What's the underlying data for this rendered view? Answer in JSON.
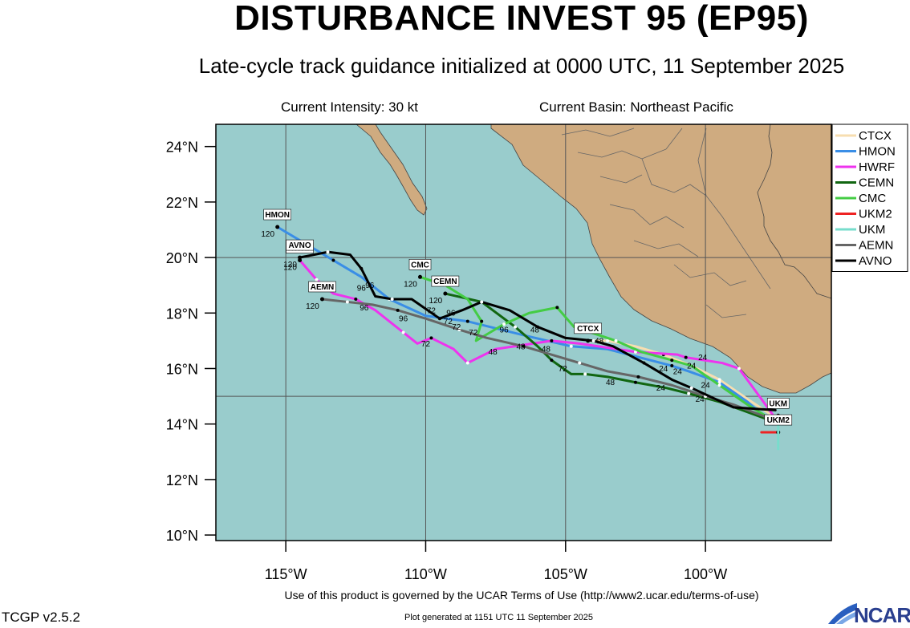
{
  "header": {
    "title": "DISTURBANCE INVEST 95 (EP95)",
    "subtitle": "Late-cycle track guidance initialized at 0000 UTC, 11 September 2025",
    "intensity": "Current Intensity: 30 kt",
    "basin": "Current Basin: Northeast Pacific"
  },
  "footer": {
    "terms": "Use of this product is governed by the UCAR Terms of Use (http://www2.ucar.edu/terms-of-use)",
    "version": "TCGP v2.5.2",
    "generated": "Plot generated at 1151 UTC   11 September 2025",
    "logo": "NCAR"
  },
  "colors": {
    "ocean": "#99cccc",
    "land": "#cfab80",
    "grid": "#555555"
  },
  "map": {
    "lon_range": [
      -117.5,
      -95.5
    ],
    "lat_range": [
      9.8,
      24.8
    ],
    "lon_ticks": [
      -115,
      -110,
      -105,
      -100
    ],
    "lon_tick_labels": [
      "115°W",
      "110°W",
      "105°W",
      "100°W"
    ],
    "lat_ticks": [
      10,
      12,
      14,
      16,
      18,
      20,
      22,
      24
    ],
    "lat_tick_labels": [
      "10°N",
      "12°N",
      "14°N",
      "16°N",
      "18°N",
      "20°N",
      "22°N",
      "24°N"
    ],
    "grid_lons": [
      -115,
      -110,
      -105,
      -100
    ],
    "grid_lats": [
      15,
      20
    ]
  },
  "legend": [
    {
      "name": "CTCX",
      "color": "#f7deb0"
    },
    {
      "name": "HMON",
      "color": "#3a8ee6"
    },
    {
      "name": "HWRF",
      "color": "#ee33ee"
    },
    {
      "name": "CEMN",
      "color": "#116611"
    },
    {
      "name": "CMC",
      "color": "#44cc44"
    },
    {
      "name": "UKM2",
      "color": "#ee2222"
    },
    {
      "name": "UKM",
      "color": "#77ddcc"
    },
    {
      "name": "AEMN",
      "color": "#666666"
    },
    {
      "name": "AVNO",
      "color": "#000000"
    }
  ],
  "chart_data": {
    "type": "line",
    "series": [
      {
        "name": "CTCX",
        "color": "#f7deb0",
        "lon": [
          -97.6,
          -98.5,
          -99.5,
          -100.5,
          -101.5,
          -102.5,
          -103.5,
          -104.2
        ],
        "lat": [
          14.3,
          14.9,
          15.6,
          16.1,
          16.5,
          16.8,
          17.0,
          17.0
        ],
        "end_label": "CTCX",
        "end_hour": ""
      },
      {
        "name": "HMON",
        "color": "#3a8ee6",
        "lon": [
          -97.6,
          -98.5,
          -99.5,
          -100.6,
          -101.2,
          -103.5,
          -104.8,
          -106.5,
          -108.5,
          -110.0,
          -111.3,
          -112.3,
          -113.3,
          -114.3,
          -115.3
        ],
        "lat": [
          14.0,
          14.8,
          15.5,
          15.9,
          16.1,
          16.7,
          16.8,
          17.2,
          17.7,
          17.9,
          18.5,
          19.3,
          19.9,
          20.5,
          21.1
        ],
        "end_label": "HMON",
        "end_hour": "120"
      },
      {
        "name": "HWRF",
        "color": "#ee33ee",
        "lon": [
          -97.5,
          -98.0,
          -98.8,
          -99.4,
          -100.7,
          -101.0,
          -102.5,
          -104.5,
          -105.5,
          -107.5,
          -108.5,
          -109.0,
          -109.8,
          -110.3,
          -110.8,
          -111.8,
          -112.5,
          -113.3,
          -113.9,
          -114.5
        ],
        "lat": [
          14.2,
          14.9,
          16.0,
          16.2,
          16.4,
          16.5,
          16.6,
          16.9,
          17.0,
          16.7,
          16.2,
          16.7,
          17.1,
          16.9,
          17.3,
          18.1,
          18.5,
          18.7,
          19.2,
          19.9
        ],
        "end_label": "HWRF",
        "end_hour": "120"
      },
      {
        "name": "CEMN",
        "color": "#116611",
        "lon": [
          -97.6,
          -99.5,
          -100.6,
          -101.4,
          -102.5,
          -103.5,
          -104.3,
          -104.8,
          -105.5,
          -106.0,
          -106.8,
          -108.0,
          -109.3
        ],
        "lat": [
          14.1,
          14.8,
          15.1,
          15.3,
          15.5,
          15.7,
          15.8,
          15.8,
          16.3,
          16.8,
          17.5,
          18.4,
          18.7
        ],
        "end_label": "CEMN",
        "end_hour": "120"
      },
      {
        "name": "CMC",
        "color": "#44cc44",
        "lon": [
          -97.7,
          -98.5,
          -99.5,
          -100.5,
          -101.2,
          -102.3,
          -103.2,
          -104.7,
          -105.3,
          -106.3,
          -107.2,
          -108.2,
          -108.0,
          -108.5,
          -109.3,
          -110.2
        ],
        "lat": [
          14.2,
          14.7,
          15.4,
          16.1,
          16.3,
          16.6,
          17.0,
          17.5,
          18.2,
          18.0,
          17.6,
          17.0,
          17.7,
          18.5,
          19.0,
          19.3
        ],
        "end_label": "CMC",
        "end_hour": "120"
      },
      {
        "name": "AEMN",
        "color": "#666666",
        "lon": [
          -97.7,
          -99.0,
          -100.0,
          -101.2,
          -102.4,
          -103.5,
          -104.5,
          -105.5,
          -106.5,
          -107.8,
          -108.8,
          -110.0,
          -111.0,
          -111.9,
          -112.8,
          -113.7
        ],
        "lat": [
          14.2,
          14.7,
          15.0,
          15.4,
          15.7,
          15.9,
          16.2,
          16.5,
          16.8,
          17.1,
          17.4,
          17.8,
          18.1,
          18.3,
          18.4,
          18.5
        ],
        "end_label": "AEMN",
        "end_hour": "120"
      },
      {
        "name": "AVNO",
        "color": "#000000",
        "lon": [
          -97.5,
          -99.0,
          -100.5,
          -101.2,
          -102.2,
          -103.3,
          -104.0,
          -105.0,
          -106.0,
          -107.0,
          -108.0,
          -108.7,
          -109.5,
          -110.5,
          -111.2,
          -111.8,
          -112.3,
          -112.7,
          -113.5,
          -114.0,
          -114.5
        ],
        "lat": [
          14.5,
          14.6,
          15.3,
          15.6,
          16.2,
          16.8,
          17.0,
          17.1,
          17.5,
          18.1,
          18.4,
          18.1,
          17.8,
          18.5,
          18.5,
          18.6,
          19.6,
          20.1,
          20.2,
          20.1,
          20.0
        ],
        "end_label": "AVNO",
        "end_hour": "120"
      },
      {
        "name": "UKM2",
        "color": "#ee2222",
        "lon": [
          -98.0,
          -97.4
        ],
        "lat": [
          13.7,
          13.7
        ],
        "end_label": "UKM2",
        "end_hour": ""
      },
      {
        "name": "UKM",
        "color": "#77ddcc",
        "lon": [
          -97.4,
          -97.4
        ],
        "lat": [
          13.1,
          14.3
        ],
        "end_label": "UKM",
        "end_hour": ""
      }
    ],
    "forecast_hour_labels": [
      {
        "text": "24",
        "lon": -100.1,
        "lat": 16.3
      },
      {
        "text": "24",
        "lon": -100.5,
        "lat": 16.0
      },
      {
        "text": "24",
        "lon": -101.5,
        "lat": 15.9
      },
      {
        "text": "24",
        "lon": -101.0,
        "lat": 15.8
      },
      {
        "text": "24",
        "lon": -101.6,
        "lat": 15.2
      },
      {
        "text": "24",
        "lon": -100.0,
        "lat": 15.3
      },
      {
        "text": "24",
        "lon": -100.2,
        "lat": 14.8
      },
      {
        "text": "48",
        "lon": -103.8,
        "lat": 16.9
      },
      {
        "text": "48",
        "lon": -106.1,
        "lat": 17.3
      },
      {
        "text": "48",
        "lon": -106.6,
        "lat": 16.7
      },
      {
        "text": "48",
        "lon": -107.6,
        "lat": 16.5
      },
      {
        "text": "48",
        "lon": -105.7,
        "lat": 16.6
      },
      {
        "text": "48",
        "lon": -103.4,
        "lat": 15.4
      },
      {
        "text": "72",
        "lon": -109.8,
        "lat": 18.0
      },
      {
        "text": "72",
        "lon": -109.2,
        "lat": 17.6
      },
      {
        "text": "72",
        "lon": -108.9,
        "lat": 17.4
      },
      {
        "text": "72",
        "lon": -108.3,
        "lat": 17.2
      },
      {
        "text": "72",
        "lon": -110.0,
        "lat": 16.8
      },
      {
        "text": "72",
        "lon": -105.1,
        "lat": 15.9
      },
      {
        "text": "96",
        "lon": -112.3,
        "lat": 18.8
      },
      {
        "text": "96",
        "lon": -112.0,
        "lat": 18.9
      },
      {
        "text": "96",
        "lon": -109.1,
        "lat": 17.9
      },
      {
        "text": "96",
        "lon": -110.8,
        "lat": 17.7
      },
      {
        "text": "96",
        "lon": -107.2,
        "lat": 17.3
      },
      {
        "text": "96",
        "lon": -112.2,
        "lat": 18.1
      }
    ]
  }
}
